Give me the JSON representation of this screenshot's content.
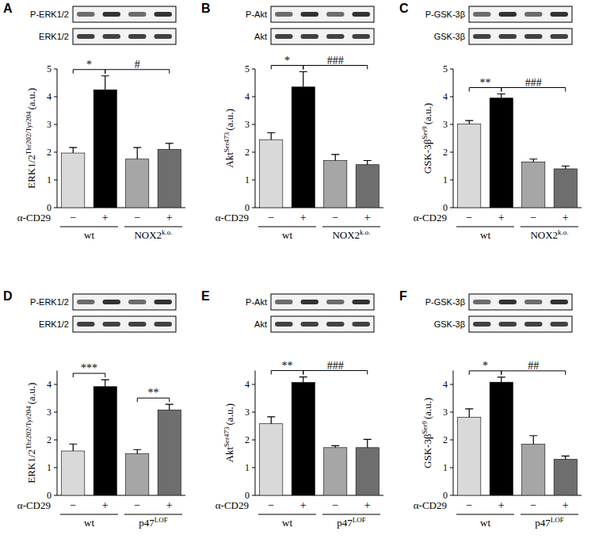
{
  "chart_data": [
    {
      "type": "bar",
      "panel": "A",
      "blot_labels": [
        "P-ERK1/2",
        "ERK1/2"
      ],
      "ylabel": "ERK1/2",
      "ylabel_sup": "Thr202/Tyr204",
      "ylabel_unit": "(a.u.)",
      "treatment_label": "α-CD29",
      "categories": [
        "−",
        "+",
        "−",
        "+"
      ],
      "groups": [
        {
          "label": "wt"
        },
        {
          "label": "NOX2",
          "sup": "k.o."
        }
      ],
      "values": [
        1.97,
        4.25,
        1.75,
        2.1
      ],
      "errors": [
        0.2,
        0.5,
        0.42,
        0.22
      ],
      "colors": [
        "#d9d9d9",
        "#000000",
        "#a6a6a6",
        "#6e6e6e"
      ],
      "ylim": [
        0,
        5
      ],
      "yticks": [
        0,
        1,
        2,
        3,
        4,
        5
      ],
      "significance": [
        {
          "from": 0,
          "to": 1,
          "label": "*"
        },
        {
          "from": 1,
          "to": 3,
          "label": "#"
        }
      ]
    },
    {
      "type": "bar",
      "panel": "B",
      "blot_labels": [
        "P-Akt",
        "Akt"
      ],
      "ylabel": "Akt",
      "ylabel_sup": "Ser473",
      "ylabel_unit": "(a.u.)",
      "treatment_label": "α-CD29",
      "categories": [
        "−",
        "+",
        "−",
        "+"
      ],
      "groups": [
        {
          "label": "wt"
        },
        {
          "label": "NOX2",
          "sup": "k.o."
        }
      ],
      "values": [
        2.45,
        4.35,
        1.7,
        1.55
      ],
      "errors": [
        0.25,
        0.55,
        0.22,
        0.15
      ],
      "colors": [
        "#d9d9d9",
        "#000000",
        "#a6a6a6",
        "#6e6e6e"
      ],
      "ylim": [
        0,
        5
      ],
      "yticks": [
        0,
        1,
        2,
        3,
        4,
        5
      ],
      "significance": [
        {
          "from": 0,
          "to": 1,
          "label": "*"
        },
        {
          "from": 1,
          "to": 3,
          "label": "###"
        }
      ]
    },
    {
      "type": "bar",
      "panel": "C",
      "blot_labels": [
        "P-GSK-3β",
        "GSK-3β"
      ],
      "ylabel": "GSK-3β",
      "ylabel_sup": "Ser9",
      "ylabel_unit": "(a.u.)",
      "treatment_label": "α-CD29",
      "categories": [
        "−",
        "+",
        "−",
        "+"
      ],
      "groups": [
        {
          "label": "wt"
        },
        {
          "label": "NOX2",
          "sup": "k.o."
        }
      ],
      "values": [
        3.02,
        3.95,
        1.65,
        1.4
      ],
      "errors": [
        0.12,
        0.15,
        0.1,
        0.1
      ],
      "colors": [
        "#d9d9d9",
        "#000000",
        "#a6a6a6",
        "#6e6e6e"
      ],
      "ylim": [
        0,
        5
      ],
      "yticks": [
        0,
        1,
        2,
        3,
        4,
        5
      ],
      "significance": [
        {
          "from": 0,
          "to": 1,
          "label": "**"
        },
        {
          "from": 1,
          "to": 3,
          "label": "###"
        }
      ]
    },
    {
      "type": "bar",
      "panel": "D",
      "blot_labels": [
        "P-ERK1/2",
        "ERK1/2"
      ],
      "ylabel": "ERK1/2",
      "ylabel_sup": "Thr202/Tyr204",
      "ylabel_unit": "(a.u.)",
      "treatment_label": "α-CD29",
      "categories": [
        "−",
        "+",
        "−",
        "+"
      ],
      "groups": [
        {
          "label": "wt"
        },
        {
          "label": "p47",
          "sup": "LOF"
        }
      ],
      "values": [
        1.6,
        3.92,
        1.5,
        3.08
      ],
      "errors": [
        0.25,
        0.25,
        0.15,
        0.2
      ],
      "colors": [
        "#d9d9d9",
        "#000000",
        "#a6a6a6",
        "#6e6e6e"
      ],
      "ylim": [
        0,
        4.5
      ],
      "yticks": [
        0,
        1,
        2,
        3,
        4
      ],
      "significance": [
        {
          "from": 0,
          "to": 1,
          "label": "***"
        },
        {
          "from": 2,
          "to": 3,
          "label": "**"
        }
      ]
    },
    {
      "type": "bar",
      "panel": "E",
      "blot_labels": [
        "P-Akt",
        "Akt"
      ],
      "ylabel": "Akt",
      "ylabel_sup": "Ser473",
      "ylabel_unit": "(a.u.)",
      "treatment_label": "α-CD29",
      "categories": [
        "−",
        "+",
        "−",
        "+"
      ],
      "groups": [
        {
          "label": "wt"
        },
        {
          "label": "p47",
          "sup": "LOF"
        }
      ],
      "values": [
        2.58,
        4.07,
        1.72,
        1.72
      ],
      "errors": [
        0.25,
        0.2,
        0.07,
        0.3
      ],
      "colors": [
        "#d9d9d9",
        "#000000",
        "#a6a6a6",
        "#6e6e6e"
      ],
      "ylim": [
        0,
        4.5
      ],
      "yticks": [
        0,
        1,
        2,
        3,
        4
      ],
      "significance": [
        {
          "from": 0,
          "to": 1,
          "label": "**"
        },
        {
          "from": 1,
          "to": 3,
          "label": "###"
        }
      ]
    },
    {
      "type": "bar",
      "panel": "F",
      "blot_labels": [
        "P-GSK-3β",
        "GSK-3β"
      ],
      "ylabel": "GSK-3β",
      "ylabel_sup": "Ser9",
      "ylabel_unit": "(a.u.)",
      "treatment_label": "α-CD29",
      "categories": [
        "−",
        "+",
        "−",
        "+"
      ],
      "groups": [
        {
          "label": "wt"
        },
        {
          "label": "p47",
          "sup": "LOF"
        }
      ],
      "values": [
        2.82,
        4.08,
        1.85,
        1.3
      ],
      "errors": [
        0.3,
        0.18,
        0.3,
        0.12
      ],
      "colors": [
        "#d9d9d9",
        "#000000",
        "#a6a6a6",
        "#6e6e6e"
      ],
      "ylim": [
        0,
        4.5
      ],
      "yticks": [
        0,
        1,
        2,
        3,
        4
      ],
      "significance": [
        {
          "from": 0,
          "to": 1,
          "label": "*"
        },
        {
          "from": 1,
          "to": 3,
          "label": "##"
        }
      ]
    }
  ]
}
